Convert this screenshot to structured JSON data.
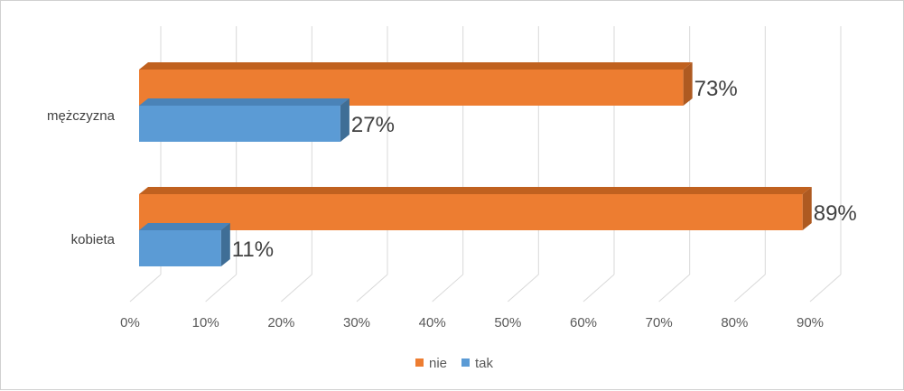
{
  "chart_data": {
    "type": "bar",
    "orientation": "horizontal",
    "style": "3d",
    "categories": [
      "mężczyzna",
      "kobieta"
    ],
    "series": [
      {
        "name": "nie",
        "values": [
          73,
          89
        ],
        "labels": [
          "73%",
          "89%"
        ],
        "color": "#ED7D31",
        "side_color": "#AE5A21",
        "top_color": "#C0611F"
      },
      {
        "name": "tak",
        "values": [
          27,
          11
        ],
        "labels": [
          "27%",
          "11%"
        ],
        "color": "#5B9BD5",
        "side_color": "#3F6E96",
        "top_color": "#4A83B8"
      }
    ],
    "xlim": [
      0,
      90
    ],
    "xticks": [
      {
        "value": 0,
        "label": "0%"
      },
      {
        "value": 10,
        "label": "10%"
      },
      {
        "value": 20,
        "label": "20%"
      },
      {
        "value": 30,
        "label": "30%"
      },
      {
        "value": 40,
        "label": "40%"
      },
      {
        "value": 50,
        "label": "50%"
      },
      {
        "value": 60,
        "label": "60%"
      },
      {
        "value": 70,
        "label": "70%"
      },
      {
        "value": 80,
        "label": "80%"
      },
      {
        "value": 90,
        "label": "90%"
      }
    ],
    "grid": true,
    "legend": "bottom",
    "title": "",
    "xlabel": "",
    "ylabel": ""
  }
}
